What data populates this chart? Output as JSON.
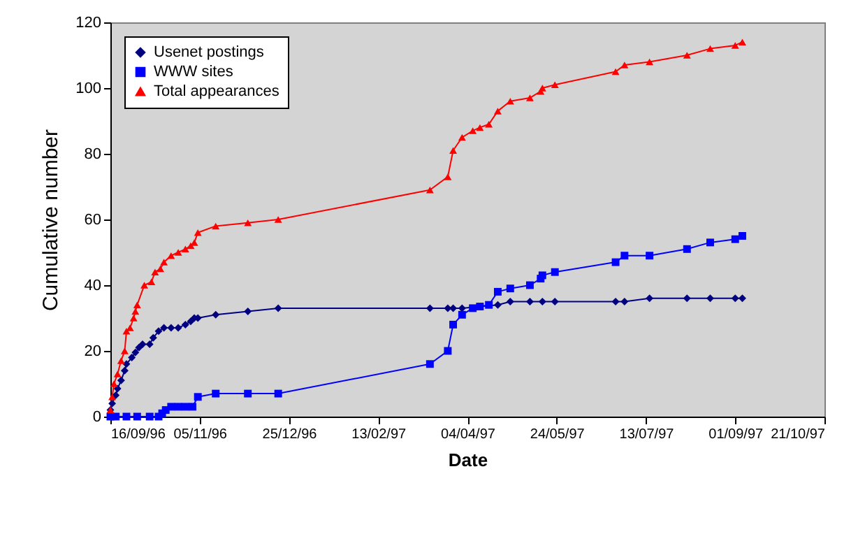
{
  "chart_data": {
    "type": "line",
    "xlabel": "Date",
    "ylabel": "Cumulative number",
    "xlim": [
      "1996-09-16",
      "1997-10-21"
    ],
    "xticks": [
      {
        "value": "1996-09-16",
        "label": "16/09/96"
      },
      {
        "value": "1996-11-05",
        "label": "05/11/96"
      },
      {
        "value": "1996-12-25",
        "label": "25/12/96"
      },
      {
        "value": "1997-02-13",
        "label": "13/02/97"
      },
      {
        "value": "1997-04-04",
        "label": "04/04/97"
      },
      {
        "value": "1997-05-24",
        "label": "24/05/97"
      },
      {
        "value": "1997-07-13",
        "label": "13/07/97"
      },
      {
        "value": "1997-09-01",
        "label": "01/09/97"
      },
      {
        "value": "1997-10-21",
        "label": "21/10/97"
      }
    ],
    "ylim": [
      0,
      120
    ],
    "yticks": [
      0,
      20,
      40,
      60,
      80,
      100,
      120
    ],
    "grid": false,
    "legend": "top left",
    "series": [
      {
        "name": "Usenet postings",
        "color": "#000080",
        "marker": "diamond",
        "x": [
          "1996-09-16",
          "1996-09-17",
          "1996-09-19",
          "1996-09-20",
          "1996-09-22",
          "1996-09-24",
          "1996-09-25",
          "1996-09-28",
          "1996-09-30",
          "1996-10-02",
          "1996-10-04",
          "1996-10-08",
          "1996-10-10",
          "1996-10-13",
          "1996-10-16",
          "1996-10-20",
          "1996-10-24",
          "1996-10-28",
          "1996-10-31",
          "1996-11-02",
          "1996-11-04",
          "1996-11-14",
          "1996-12-02",
          "1996-12-19",
          "1997-03-14",
          "1997-03-24",
          "1997-03-27",
          "1997-04-01",
          "1997-04-21",
          "1997-04-28",
          "1997-05-09",
          "1997-05-16",
          "1997-05-23",
          "1997-06-26",
          "1997-07-01",
          "1997-07-15",
          "1997-08-05",
          "1997-08-18",
          "1997-09-01",
          "1997-09-05"
        ],
        "values": [
          2,
          4,
          6.5,
          8.5,
          11,
          14,
          16,
          18,
          19.5,
          21,
          22,
          22,
          24,
          26,
          27,
          27,
          27,
          28,
          29,
          30,
          30,
          31,
          32,
          33,
          33,
          33,
          33,
          33,
          34,
          35,
          35,
          35,
          35,
          35,
          35,
          36,
          36,
          36,
          36,
          36
        ]
      },
      {
        "name": "WWW sites",
        "color": "#0000ff",
        "marker": "square",
        "x": [
          "1996-09-16",
          "1996-09-19",
          "1996-09-25",
          "1996-10-01",
          "1996-10-08",
          "1996-10-13",
          "1996-10-15",
          "1996-10-17",
          "1996-10-20",
          "1996-10-24",
          "1996-10-28",
          "1996-11-01",
          "1996-11-04",
          "1996-11-14",
          "1996-12-02",
          "1996-12-19",
          "1997-03-14",
          "1997-03-24",
          "1997-03-27",
          "1997-04-01",
          "1997-04-07",
          "1997-04-11",
          "1997-04-16",
          "1997-04-21",
          "1997-04-28",
          "1997-05-09",
          "1997-05-15",
          "1997-05-16",
          "1997-05-23",
          "1997-06-26",
          "1997-07-01",
          "1997-07-15",
          "1997-08-05",
          "1997-08-18",
          "1997-09-01",
          "1997-09-05"
        ],
        "values": [
          0,
          0,
          0,
          0,
          0,
          0,
          1,
          2,
          3,
          3,
          3,
          3,
          6,
          7,
          7,
          7,
          16,
          20,
          28,
          31,
          33,
          33.5,
          34,
          38,
          39,
          40,
          42,
          43,
          44,
          47,
          49,
          49,
          51,
          53,
          54,
          55
        ]
      },
      {
        "name": "Total appearances",
        "color": "#ff0000",
        "marker": "triangle",
        "x": [
          "1996-09-16",
          "1996-09-17",
          "1996-09-18",
          "1996-09-20",
          "1996-09-22",
          "1996-09-24",
          "1996-09-25",
          "1996-09-27",
          "1996-09-29",
          "1996-09-30",
          "1996-10-01",
          "1996-10-05",
          "1996-10-09",
          "1996-10-11",
          "1996-10-14",
          "1996-10-16",
          "1996-10-20",
          "1996-10-24",
          "1996-10-28",
          "1996-10-31",
          "1996-11-02",
          "1996-11-04",
          "1996-11-14",
          "1996-12-02",
          "1996-12-19",
          "1997-03-14",
          "1997-03-24",
          "1997-03-27",
          "1997-04-01",
          "1997-04-07",
          "1997-04-11",
          "1997-04-16",
          "1997-04-21",
          "1997-04-28",
          "1997-05-09",
          "1997-05-15",
          "1997-05-16",
          "1997-05-23",
          "1997-06-26",
          "1997-07-01",
          "1997-07-15",
          "1997-08-05",
          "1997-08-18",
          "1997-09-01",
          "1997-09-05"
        ],
        "values": [
          2,
          6,
          10,
          13,
          17,
          20,
          26,
          27,
          30,
          32,
          34,
          40,
          41,
          44,
          45,
          47,
          49,
          50,
          51,
          52,
          53,
          56,
          58,
          59,
          60,
          69,
          73,
          81,
          85,
          87,
          88,
          89,
          93,
          96,
          97,
          99,
          100,
          101,
          105,
          107,
          108,
          110,
          112,
          113,
          114
        ]
      }
    ]
  }
}
